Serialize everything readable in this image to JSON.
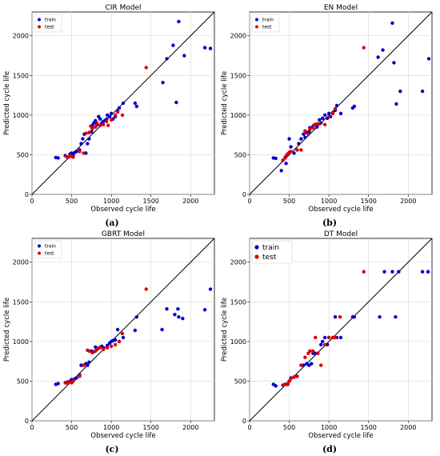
{
  "chart_data": [
    {
      "type": "scatter",
      "title": "CIR Model",
      "xlabel": "Observed cycle life",
      "ylabel": "Predicted cycle life",
      "caption": "(a)",
      "xlim": [
        0,
        2300
      ],
      "ylim": [
        0,
        2300
      ],
      "xticks": [
        "0",
        "500",
        "1000",
        "1500",
        "2000"
      ],
      "yticks": [
        "0",
        "500",
        "1000",
        "1500",
        "2000"
      ],
      "grid": true,
      "legend": "top-left",
      "legend_size": "small",
      "identity_line": true,
      "series": [
        {
          "name": "train",
          "color": "#0000cc",
          "points": [
            [
              300,
              465
            ],
            [
              330,
              460
            ],
            [
              420,
              490
            ],
            [
              450,
              470
            ],
            [
              480,
              510
            ],
            [
              500,
              520
            ],
            [
              520,
              500
            ],
            [
              540,
              530
            ],
            [
              560,
              540
            ],
            [
              600,
              560
            ],
            [
              620,
              640
            ],
            [
              640,
              700
            ],
            [
              660,
              760
            ],
            [
              680,
              520
            ],
            [
              700,
              640
            ],
            [
              720,
              700
            ],
            [
              750,
              790
            ],
            [
              760,
              870
            ],
            [
              780,
              900
            ],
            [
              800,
              930
            ],
            [
              820,
              880
            ],
            [
              840,
              980
            ],
            [
              860,
              950
            ],
            [
              880,
              900
            ],
            [
              900,
              920
            ],
            [
              920,
              930
            ],
            [
              940,
              950
            ],
            [
              950,
              1000
            ],
            [
              980,
              980
            ],
            [
              1000,
              1020
            ],
            [
              1020,
              950
            ],
            [
              1050,
              980
            ],
            [
              1080,
              1050
            ],
            [
              1100,
              1090
            ],
            [
              1150,
              1150
            ],
            [
              1300,
              1150
            ],
            [
              1320,
              1110
            ],
            [
              1650,
              1410
            ],
            [
              1700,
              1710
            ],
            [
              1780,
              1880
            ],
            [
              1820,
              1160
            ],
            [
              1850,
              2180
            ],
            [
              1920,
              1750
            ],
            [
              2180,
              1850
            ],
            [
              2250,
              1840
            ]
          ]
        },
        {
          "name": "test",
          "color": "#dd0000",
          "points": [
            [
              430,
              480
            ],
            [
              460,
              470
            ],
            [
              480,
              490
            ],
            [
              500,
              480
            ],
            [
              520,
              470
            ],
            [
              600,
              540
            ],
            [
              650,
              520
            ],
            [
              680,
              770
            ],
            [
              720,
              780
            ],
            [
              740,
              860
            ],
            [
              760,
              830
            ],
            [
              800,
              850
            ],
            [
              820,
              900
            ],
            [
              860,
              870
            ],
            [
              900,
              880
            ],
            [
              940,
              920
            ],
            [
              960,
              870
            ],
            [
              1000,
              940
            ],
            [
              1050,
              1000
            ],
            [
              1080,
              1040
            ],
            [
              1140,
              1000
            ],
            [
              1440,
              1600
            ]
          ]
        }
      ]
    },
    {
      "type": "scatter",
      "title": "EN Model",
      "xlabel": "Observed cycle life",
      "ylabel": "Predicted cycle life",
      "caption": "(b)",
      "xlim": [
        0,
        2300
      ],
      "ylim": [
        0,
        2300
      ],
      "xticks": [
        "0",
        "500",
        "1000",
        "1500",
        "2000"
      ],
      "yticks": [
        "0",
        "500",
        "1000",
        "1500",
        "2000"
      ],
      "grid": true,
      "legend": "top-left",
      "legend_size": "small",
      "identity_line": true,
      "series": [
        {
          "name": "train",
          "color": "#0000cc",
          "points": [
            [
              300,
              460
            ],
            [
              330,
              455
            ],
            [
              400,
              300
            ],
            [
              420,
              430
            ],
            [
              450,
              470
            ],
            [
              460,
              390
            ],
            [
              480,
              500
            ],
            [
              500,
              700
            ],
            [
              520,
              600
            ],
            [
              560,
              520
            ],
            [
              600,
              560
            ],
            [
              620,
              640
            ],
            [
              650,
              700
            ],
            [
              680,
              760
            ],
            [
              700,
              720
            ],
            [
              720,
              780
            ],
            [
              750,
              790
            ],
            [
              760,
              840
            ],
            [
              800,
              860
            ],
            [
              820,
              880
            ],
            [
              850,
              850
            ],
            [
              880,
              940
            ],
            [
              900,
              900
            ],
            [
              920,
              960
            ],
            [
              950,
              1000
            ],
            [
              980,
              960
            ],
            [
              1000,
              1020
            ],
            [
              1020,
              980
            ],
            [
              1050,
              1030
            ],
            [
              1080,
              1060
            ],
            [
              1100,
              1120
            ],
            [
              1150,
              1020
            ],
            [
              1300,
              1090
            ],
            [
              1320,
              1110
            ],
            [
              1620,
              1730
            ],
            [
              1680,
              1820
            ],
            [
              1800,
              2160
            ],
            [
              1820,
              1660
            ],
            [
              1850,
              1140
            ],
            [
              1900,
              1300
            ],
            [
              2180,
              1300
            ],
            [
              2260,
              1710
            ]
          ]
        },
        {
          "name": "test",
          "color": "#dd0000",
          "points": [
            [
              420,
              430
            ],
            [
              450,
              460
            ],
            [
              470,
              500
            ],
            [
              480,
              510
            ],
            [
              500,
              530
            ],
            [
              520,
              540
            ],
            [
              600,
              560
            ],
            [
              650,
              560
            ],
            [
              700,
              800
            ],
            [
              740,
              760
            ],
            [
              760,
              820
            ],
            [
              800,
              840
            ],
            [
              820,
              880
            ],
            [
              850,
              890
            ],
            [
              880,
              890
            ],
            [
              950,
              880
            ],
            [
              1000,
              980
            ],
            [
              1050,
              1020
            ],
            [
              1080,
              1080
            ],
            [
              1440,
              1850
            ]
          ]
        }
      ]
    },
    {
      "type": "scatter",
      "title": "GBRT Model",
      "xlabel": "Observed cycle life",
      "ylabel": "Predicted cycle life",
      "caption": "(c)",
      "xlim": [
        0,
        2300
      ],
      "ylim": [
        0,
        2300
      ],
      "xticks": [
        "0",
        "500",
        "1000",
        "1500",
        "2000"
      ],
      "yticks": [
        "0",
        "500",
        "1000",
        "1500",
        "2000"
      ],
      "grid": true,
      "legend": "top-left",
      "legend_size": "small",
      "identity_line": true,
      "series": [
        {
          "name": "train",
          "color": "#0000cc",
          "points": [
            [
              300,
              460
            ],
            [
              330,
              470
            ],
            [
              420,
              480
            ],
            [
              450,
              490
            ],
            [
              480,
              500
            ],
            [
              500,
              520
            ],
            [
              540,
              530
            ],
            [
              560,
              540
            ],
            [
              600,
              580
            ],
            [
              620,
              700
            ],
            [
              650,
              700
            ],
            [
              680,
              720
            ],
            [
              700,
              700
            ],
            [
              720,
              740
            ],
            [
              750,
              880
            ],
            [
              780,
              870
            ],
            [
              800,
              930
            ],
            [
              820,
              900
            ],
            [
              850,
              920
            ],
            [
              880,
              940
            ],
            [
              900,
              920
            ],
            [
              950,
              950
            ],
            [
              980,
              980
            ],
            [
              1000,
              1000
            ],
            [
              1020,
              1010
            ],
            [
              1050,
              1020
            ],
            [
              1080,
              1150
            ],
            [
              1100,
              1000
            ],
            [
              1150,
              1050
            ],
            [
              1300,
              1140
            ],
            [
              1320,
              1310
            ],
            [
              1640,
              1150
            ],
            [
              1700,
              1410
            ],
            [
              1800,
              1340
            ],
            [
              1840,
              1410
            ],
            [
              1850,
              1310
            ],
            [
              1900,
              1290
            ],
            [
              2180,
              1400
            ],
            [
              2250,
              1660
            ]
          ]
        },
        {
          "name": "test",
          "color": "#dd0000",
          "points": [
            [
              420,
              480
            ],
            [
              450,
              470
            ],
            [
              470,
              490
            ],
            [
              500,
              480
            ],
            [
              520,
              500
            ],
            [
              600,
              560
            ],
            [
              650,
              700
            ],
            [
              700,
              890
            ],
            [
              720,
              880
            ],
            [
              760,
              860
            ],
            [
              800,
              880
            ],
            [
              830,
              910
            ],
            [
              860,
              930
            ],
            [
              900,
              900
            ],
            [
              950,
              920
            ],
            [
              1000,
              940
            ],
            [
              1050,
              960
            ],
            [
              1100,
              1000
            ],
            [
              1140,
              1100
            ],
            [
              1440,
              1660
            ]
          ]
        }
      ]
    },
    {
      "type": "scatter",
      "title": "DT Model",
      "xlabel": "Observed cycle life",
      "ylabel": "Predicted cycle life",
      "caption": "(d)",
      "xlim": [
        0,
        2300
      ],
      "ylim": [
        0,
        2300
      ],
      "xticks": [
        "0",
        "500",
        "1000",
        "1500",
        "2000"
      ],
      "yticks": [
        "0",
        "500",
        "1000",
        "1500",
        "2000"
      ],
      "grid": true,
      "legend": "top-left",
      "legend_size": "large",
      "identity_line": true,
      "series": [
        {
          "name": "train",
          "color": "#0000cc",
          "points": [
            [
              300,
              460
            ],
            [
              330,
              440
            ],
            [
              420,
              450
            ],
            [
              450,
              460
            ],
            [
              480,
              460
            ],
            [
              500,
              500
            ],
            [
              520,
              540
            ],
            [
              560,
              550
            ],
            [
              600,
              560
            ],
            [
              650,
              700
            ],
            [
              680,
              700
            ],
            [
              720,
              720
            ],
            [
              750,
              700
            ],
            [
              780,
              720
            ],
            [
              800,
              850
            ],
            [
              830,
              850
            ],
            [
              860,
              850
            ],
            [
              900,
              960
            ],
            [
              920,
              1000
            ],
            [
              950,
              1050
            ],
            [
              980,
              960
            ],
            [
              1000,
              1050
            ],
            [
              1050,
              1050
            ],
            [
              1080,
              1310
            ],
            [
              1100,
              1050
            ],
            [
              1150,
              1050
            ],
            [
              1300,
              1310
            ],
            [
              1320,
              1310
            ],
            [
              1640,
              1310
            ],
            [
              1700,
              1880
            ],
            [
              1800,
              1880
            ],
            [
              1840,
              1310
            ],
            [
              1880,
              1880
            ],
            [
              2180,
              1880
            ],
            [
              2250,
              1880
            ]
          ]
        },
        {
          "name": "test",
          "color": "#dd0000",
          "points": [
            [
              430,
              450
            ],
            [
              460,
              460
            ],
            [
              480,
              470
            ],
            [
              500,
              500
            ],
            [
              520,
              530
            ],
            [
              560,
              550
            ],
            [
              600,
              560
            ],
            [
              650,
              700
            ],
            [
              700,
              800
            ],
            [
              740,
              850
            ],
            [
              760,
              880
            ],
            [
              800,
              880
            ],
            [
              830,
              1050
            ],
            [
              860,
              850
            ],
            [
              900,
              700
            ],
            [
              950,
              960
            ],
            [
              1000,
              1050
            ],
            [
              1050,
              1050
            ],
            [
              1080,
              1050
            ],
            [
              1140,
              1310
            ],
            [
              1440,
              1880
            ]
          ]
        }
      ]
    }
  ]
}
